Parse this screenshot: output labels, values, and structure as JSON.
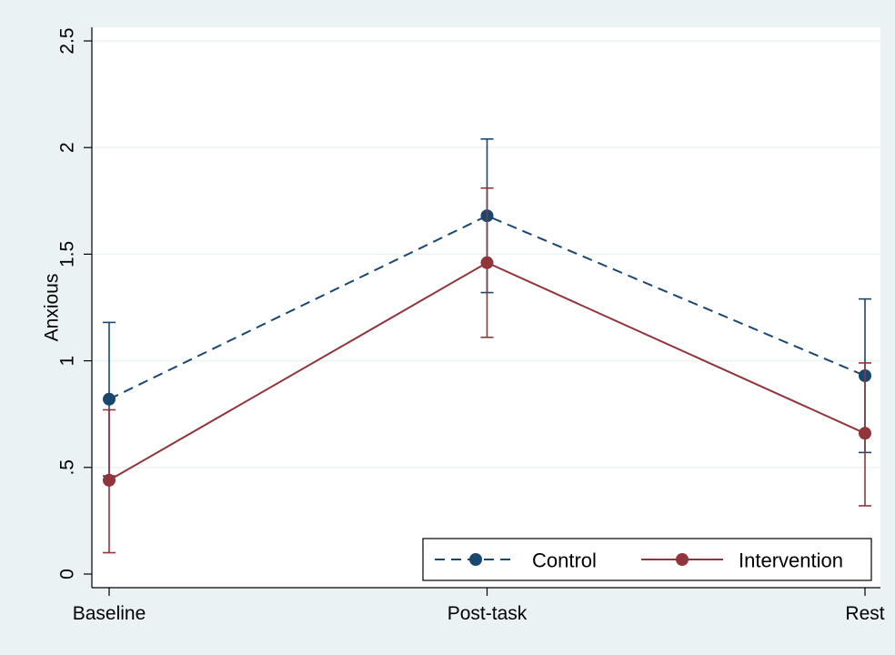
{
  "chart_data": {
    "type": "line",
    "title": "",
    "xlabel": "",
    "ylabel": "Anxious",
    "categories": [
      "Baseline",
      "Post-task",
      "Rest"
    ],
    "ylim": [
      0,
      2.5
    ],
    "yticks": [
      0,
      0.5,
      1,
      1.5,
      2,
      2.5
    ],
    "ytick_labels": [
      "0",
      ".5",
      "1",
      "1.5",
      "2",
      "2.5"
    ],
    "grid": true,
    "legend_position": "bottom-right",
    "series": [
      {
        "name": "Control",
        "color": "#1a476f",
        "line_style": "dashed",
        "values": [
          0.82,
          1.68,
          0.93
        ],
        "ci_low": [
          0.46,
          1.32,
          0.57
        ],
        "ci_high": [
          1.18,
          2.04,
          1.29
        ]
      },
      {
        "name": "Intervention",
        "color": "#90353b",
        "line_style": "solid",
        "values": [
          0.44,
          1.46,
          0.66
        ],
        "ci_low": [
          0.1,
          1.11,
          0.32
        ],
        "ci_high": [
          0.77,
          1.81,
          0.99
        ]
      }
    ]
  },
  "colors": {
    "outer_background": "#eaf2f3",
    "plot_background": "#ffffff",
    "gridline": "#eaf2f3"
  }
}
